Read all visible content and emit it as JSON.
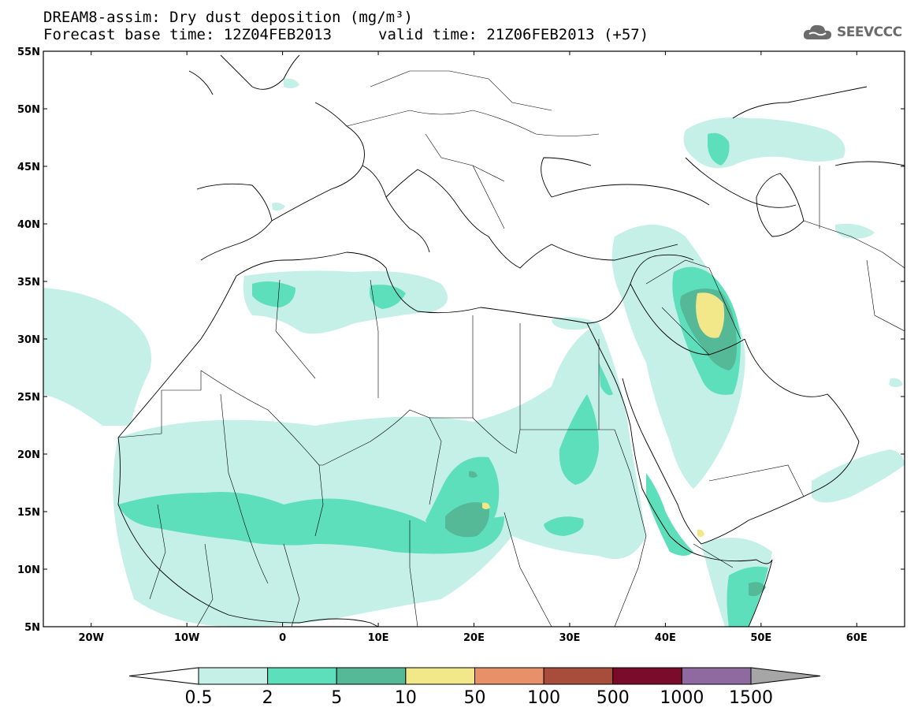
{
  "title": {
    "line1": "DREAM8-assim: Dry dust deposition (mg/m³)",
    "line2": "Forecast base time: 12Z04FEB2013",
    "line2b": "valid time: 21Z06FEB2013 (+57)"
  },
  "logo": {
    "text": "SEEVCCC",
    "icon": "cloud-icon"
  },
  "map": {
    "lat_labels": [
      "55N",
      "50N",
      "45N",
      "40N",
      "35N",
      "30N",
      "25N",
      "20N",
      "15N",
      "10N",
      "5N"
    ],
    "lon_labels": [
      "20W",
      "10W",
      "0",
      "10E",
      "20E",
      "30E",
      "40E",
      "50E",
      "60E"
    ],
    "lon_range": [
      -25,
      65
    ],
    "lat_range": [
      5,
      55
    ]
  },
  "colorbar": {
    "labels": [
      "0.5",
      "2",
      "5",
      "10",
      "50",
      "100",
      "500",
      "1000",
      "1500"
    ],
    "colors": [
      "#c4f0e8",
      "#5ddfbb",
      "#55b896",
      "#f2e88a",
      "#e89068",
      "#a84d3c",
      "#7a0b2a",
      "#8e6aa1"
    ],
    "under_color": "#ffffff",
    "over_color": "#a6a6a6"
  }
}
